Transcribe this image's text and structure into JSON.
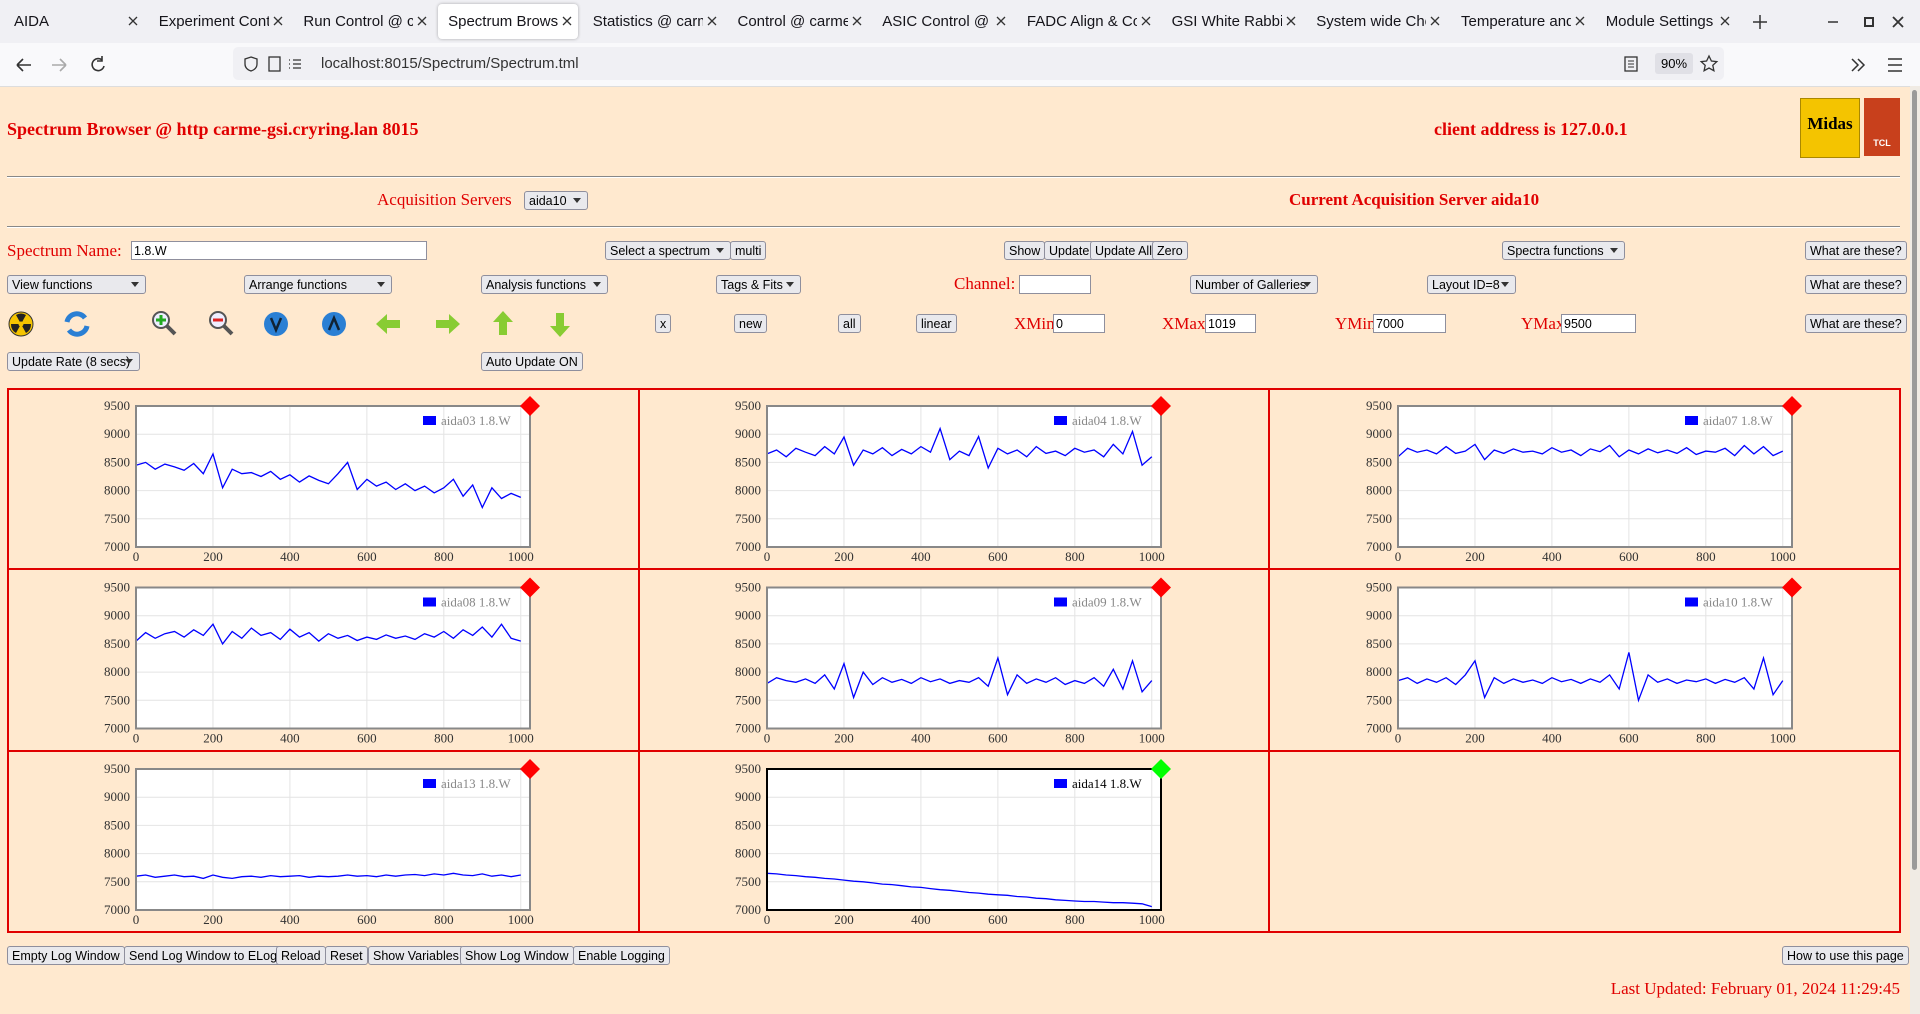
{
  "browser": {
    "tabs": [
      "AIDA",
      "Experiment Cont",
      "Run Control @ c",
      "Spectrum Brows",
      "Statistics @ carm",
      "Control @ carme",
      "ASIC Control @ c",
      "FADC Align & Co",
      "GSI White Rabbit",
      "System wide Che",
      "Temperature and",
      "Module Settings"
    ],
    "url": "localhost:8015/Spectrum/Spectrum.tml",
    "zoom": "90%"
  },
  "page": {
    "title": "Spectrum Browser @ http carme-gsi.cryring.lan 8015",
    "client_address": "client address is 127.0.0.1",
    "logos": [
      "Midas",
      "TCL"
    ],
    "acquisition_label": "Acquisition Servers",
    "acquisition_server": "aida10",
    "current_server": "Current Acquisition Server aida10",
    "spectrum_name_label": "Spectrum Name:",
    "spectrum_name": "1.8.W",
    "select_spectrum": "Select a spectrum",
    "multi": "multi",
    "show": "Show",
    "update": "Update",
    "update_all": "Update All",
    "zero": "Zero",
    "spectra_functions": "Spectra functions",
    "help_buttons": [
      "What are these?",
      "What are these?",
      "What are these?"
    ],
    "view_functions": "View functions",
    "arrange_functions": "Arrange functions",
    "analysis_functions": "Analysis functions",
    "tags_fits": "Tags & Fits",
    "channel_label": "Channel:",
    "galleries": "Number of Galleries",
    "layout": "Layout ID=8",
    "x_button": "x",
    "new_button": "new",
    "all_button": "all",
    "linear_button": "linear",
    "xmin_label": "XMin",
    "xmin": 0,
    "xmax_label": "XMax",
    "xmax": 1019,
    "ymin_label": "YMin",
    "ymin": 7000,
    "ymax_label": "YMax",
    "ymax": 9500,
    "update_rate": "Update Rate (8 secs)",
    "auto_update": "Auto Update ON",
    "footer_buttons": [
      "Empty Log Window",
      "Send Log Window to ELog",
      "Reload",
      "Reset",
      "Show Variables",
      "Show Log Window",
      "Enable Logging"
    ],
    "how_to": "How to use this page",
    "last_updated": "Last Updated: February 01, 2024 11:29:45"
  },
  "chart_data": [
    {
      "type": "line",
      "x": [
        0,
        25,
        50,
        75,
        100,
        125,
        150,
        175,
        200,
        225,
        250,
        275,
        300,
        325,
        350,
        375,
        400,
        425,
        450,
        475,
        500,
        525,
        550,
        575,
        600,
        625,
        650,
        675,
        700,
        725,
        750,
        775,
        800,
        825,
        850,
        875,
        900,
        925,
        950,
        975,
        1000
      ],
      "series": [
        {
          "name": "aida03 1.8.W",
          "color": "#0000ff",
          "values": [
            8450,
            8500,
            8380,
            8470,
            8420,
            8360,
            8480,
            8300,
            8650,
            8050,
            8380,
            8300,
            8320,
            8250,
            8340,
            8200,
            8280,
            8150,
            8260,
            8180,
            8120,
            8300,
            8500,
            8020,
            8200,
            8080,
            8150,
            8020,
            8120,
            8000,
            8080,
            7960,
            8050,
            8200,
            7900,
            8100,
            7700,
            8050,
            7860,
            7950,
            7880
          ]
        }
      ],
      "xlim": [
        0,
        1024
      ],
      "ylim": [
        7000,
        9500
      ],
      "xticks": [
        0,
        200,
        400,
        600,
        800,
        1000
      ],
      "yticks": [
        7000,
        7500,
        8000,
        8500,
        9000,
        9500
      ],
      "grid": true,
      "status_color": "#ff0000",
      "frame_color": "#888888"
    },
    {
      "type": "line",
      "x": [
        0,
        25,
        50,
        75,
        100,
        125,
        150,
        175,
        200,
        225,
        250,
        275,
        300,
        325,
        350,
        375,
        400,
        425,
        450,
        475,
        500,
        525,
        550,
        575,
        600,
        625,
        650,
        675,
        700,
        725,
        750,
        775,
        800,
        825,
        850,
        875,
        900,
        925,
        950,
        975,
        1000
      ],
      "series": [
        {
          "name": "aida04 1.8.W",
          "color": "#0000ff",
          "values": [
            8650,
            8720,
            8600,
            8750,
            8680,
            8620,
            8780,
            8650,
            8950,
            8450,
            8720,
            8650,
            8760,
            8620,
            8730,
            8650,
            8780,
            8680,
            9100,
            8550,
            8700,
            8620,
            8960,
            8400,
            8750,
            8650,
            8720,
            8600,
            8780,
            8660,
            8700,
            8620,
            8750,
            8680,
            8720,
            8600,
            8820,
            8650,
            9050,
            8450,
            8600
          ]
        }
      ],
      "xlim": [
        0,
        1024
      ],
      "ylim": [
        7000,
        9500
      ],
      "xticks": [
        0,
        200,
        400,
        600,
        800,
        1000
      ],
      "yticks": [
        7000,
        7500,
        8000,
        8500,
        9000,
        9500
      ],
      "grid": true,
      "status_color": "#ff0000",
      "frame_color": "#888888"
    },
    {
      "type": "line",
      "x": [
        0,
        25,
        50,
        75,
        100,
        125,
        150,
        175,
        200,
        225,
        250,
        275,
        300,
        325,
        350,
        375,
        400,
        425,
        450,
        475,
        500,
        525,
        550,
        575,
        600,
        625,
        650,
        675,
        700,
        725,
        750,
        775,
        800,
        825,
        850,
        875,
        900,
        925,
        950,
        975,
        1000
      ],
      "series": [
        {
          "name": "aida07 1.8.W",
          "color": "#0000ff",
          "values": [
            8600,
            8750,
            8680,
            8720,
            8650,
            8780,
            8660,
            8700,
            8820,
            8550,
            8720,
            8660,
            8740,
            8680,
            8700,
            8650,
            8760,
            8680,
            8720,
            8620,
            8740,
            8690,
            8800,
            8600,
            8720,
            8650,
            8740,
            8670,
            8720,
            8660,
            8760,
            8640,
            8700,
            8680,
            8750,
            8620,
            8800,
            8650,
            8780,
            8620,
            8700
          ]
        }
      ],
      "xlim": [
        0,
        1024
      ],
      "ylim": [
        7000,
        9500
      ],
      "xticks": [
        0,
        200,
        400,
        600,
        800,
        1000
      ],
      "yticks": [
        7000,
        7500,
        8000,
        8500,
        9000,
        9500
      ],
      "grid": true,
      "status_color": "#ff0000",
      "frame_color": "#888888"
    },
    {
      "type": "line",
      "x": [
        0,
        25,
        50,
        75,
        100,
        125,
        150,
        175,
        200,
        225,
        250,
        275,
        300,
        325,
        350,
        375,
        400,
        425,
        450,
        475,
        500,
        525,
        550,
        575,
        600,
        625,
        650,
        675,
        700,
        725,
        750,
        775,
        800,
        825,
        850,
        875,
        900,
        925,
        950,
        975,
        1000
      ],
      "series": [
        {
          "name": "aida08 1.8.W",
          "color": "#0000ff",
          "values": [
            8550,
            8700,
            8600,
            8680,
            8720,
            8620,
            8750,
            8650,
            8850,
            8500,
            8720,
            8600,
            8780,
            8650,
            8700,
            8580,
            8760,
            8620,
            8700,
            8550,
            8680,
            8600,
            8650,
            8560,
            8620,
            8580,
            8660,
            8600,
            8640,
            8580,
            8680,
            8620,
            8720,
            8600,
            8750,
            8650,
            8800,
            8620,
            8850,
            8600,
            8550
          ]
        }
      ],
      "xlim": [
        0,
        1024
      ],
      "ylim": [
        7000,
        9500
      ],
      "xticks": [
        0,
        200,
        400,
        600,
        800,
        1000
      ],
      "yticks": [
        7000,
        7500,
        8000,
        8500,
        9000,
        9500
      ],
      "grid": true,
      "status_color": "#ff0000",
      "frame_color": "#888888"
    },
    {
      "type": "line",
      "x": [
        0,
        25,
        50,
        75,
        100,
        125,
        150,
        175,
        200,
        225,
        250,
        275,
        300,
        325,
        350,
        375,
        400,
        425,
        450,
        475,
        500,
        525,
        550,
        575,
        600,
        625,
        650,
        675,
        700,
        725,
        750,
        775,
        800,
        825,
        850,
        875,
        900,
        925,
        950,
        975,
        1000
      ],
      "series": [
        {
          "name": "aida09 1.8.W",
          "color": "#0000ff",
          "values": [
            7800,
            7900,
            7850,
            7820,
            7880,
            7800,
            7950,
            7700,
            8150,
            7550,
            8000,
            7780,
            7900,
            7820,
            7870,
            7800,
            7900,
            7830,
            7880,
            7800,
            7850,
            7820,
            7900,
            7750,
            8250,
            7600,
            7950,
            7800,
            7880,
            7820,
            7900,
            7780,
            7850,
            7800,
            7900,
            7750,
            8050,
            7700,
            8200,
            7650,
            7850
          ]
        }
      ],
      "xlim": [
        0,
        1024
      ],
      "ylim": [
        7000,
        9500
      ],
      "xticks": [
        0,
        200,
        400,
        600,
        800,
        1000
      ],
      "yticks": [
        7000,
        7500,
        8000,
        8500,
        9000,
        9500
      ],
      "grid": true,
      "status_color": "#ff0000",
      "frame_color": "#888888"
    },
    {
      "type": "line",
      "x": [
        0,
        25,
        50,
        75,
        100,
        125,
        150,
        175,
        200,
        225,
        250,
        275,
        300,
        325,
        350,
        375,
        400,
        425,
        450,
        475,
        500,
        525,
        550,
        575,
        600,
        625,
        650,
        675,
        700,
        725,
        750,
        775,
        800,
        825,
        850,
        875,
        900,
        925,
        950,
        975,
        1000
      ],
      "series": [
        {
          "name": "aida10 1.8.W",
          "color": "#0000ff",
          "values": [
            7850,
            7900,
            7800,
            7880,
            7820,
            7900,
            7780,
            7950,
            8200,
            7550,
            7900,
            7800,
            7880,
            7820,
            7860,
            7800,
            7900,
            7830,
            7870,
            7800,
            7880,
            7820,
            7950,
            7700,
            8350,
            7500,
            7950,
            7820,
            7880,
            7800,
            7860,
            7830,
            7880,
            7800,
            7870,
            7820,
            7900,
            7700,
            8250,
            7600,
            7850
          ]
        }
      ],
      "xlim": [
        0,
        1024
      ],
      "ylim": [
        7000,
        9500
      ],
      "xticks": [
        0,
        200,
        400,
        600,
        800,
        1000
      ],
      "yticks": [
        7000,
        7500,
        8000,
        8500,
        9000,
        9500
      ],
      "grid": true,
      "status_color": "#ff0000",
      "frame_color": "#888888"
    },
    {
      "type": "line",
      "x": [
        0,
        25,
        50,
        75,
        100,
        125,
        150,
        175,
        200,
        225,
        250,
        275,
        300,
        325,
        350,
        375,
        400,
        425,
        450,
        475,
        500,
        525,
        550,
        575,
        600,
        625,
        650,
        675,
        700,
        725,
        750,
        775,
        800,
        825,
        850,
        875,
        900,
        925,
        950,
        975,
        1000
      ],
      "series": [
        {
          "name": "aida13 1.8.W",
          "color": "#0000ff",
          "values": [
            7600,
            7620,
            7580,
            7600,
            7620,
            7590,
            7600,
            7560,
            7620,
            7580,
            7560,
            7590,
            7600,
            7580,
            7610,
            7590,
            7600,
            7610,
            7580,
            7600,
            7590,
            7600,
            7620,
            7600,
            7610,
            7590,
            7620,
            7600,
            7620,
            7630,
            7610,
            7640,
            7620,
            7650,
            7620,
            7610,
            7640,
            7600,
            7620,
            7590,
            7620
          ]
        }
      ],
      "xlim": [
        0,
        1024
      ],
      "ylim": [
        7000,
        9500
      ],
      "xticks": [
        0,
        200,
        400,
        600,
        800,
        1000
      ],
      "yticks": [
        7000,
        7500,
        8000,
        8500,
        9000,
        9500
      ],
      "grid": true,
      "status_color": "#ff0000",
      "frame_color": "#888888"
    },
    {
      "type": "line",
      "x": [
        0,
        25,
        50,
        75,
        100,
        125,
        150,
        175,
        200,
        225,
        250,
        275,
        300,
        325,
        350,
        375,
        400,
        425,
        450,
        475,
        500,
        525,
        550,
        575,
        600,
        625,
        650,
        675,
        700,
        725,
        750,
        775,
        800,
        825,
        850,
        875,
        900,
        925,
        950,
        975,
        1000
      ],
      "series": [
        {
          "name": "aida14 1.8.W",
          "color": "#0000ff",
          "values": [
            7650,
            7640,
            7620,
            7610,
            7590,
            7580,
            7560,
            7550,
            7530,
            7510,
            7500,
            7480,
            7460,
            7450,
            7430,
            7410,
            7400,
            7380,
            7360,
            7350,
            7330,
            7310,
            7300,
            7280,
            7270,
            7260,
            7240,
            7230,
            7210,
            7200,
            7180,
            7170,
            7160,
            7150,
            7150,
            7140,
            7130,
            7130,
            7120,
            7110,
            7060
          ]
        }
      ],
      "xlim": [
        0,
        1024
      ],
      "ylim": [
        7000,
        9500
      ],
      "xticks": [
        0,
        200,
        400,
        600,
        800,
        1000
      ],
      "yticks": [
        7000,
        7500,
        8000,
        8500,
        9000,
        9500
      ],
      "grid": true,
      "status_color": "#00ff00",
      "frame_color": "#000000"
    }
  ]
}
